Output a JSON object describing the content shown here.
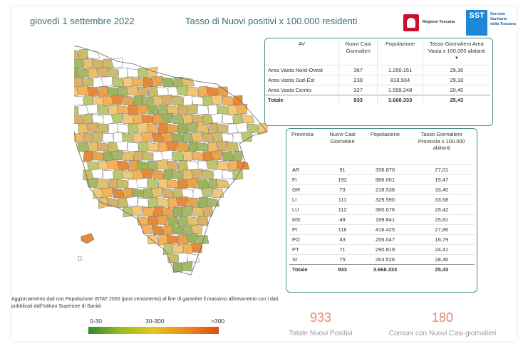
{
  "header": {
    "date": "giovedì 1 settembre 2022",
    "title": "Tasso di Nuovi positivi x 100.000 residenti",
    "logo_regione": "Regione Toscana",
    "logo_sst_mark": "SST",
    "logo_sst_text": "Servizio Sanitario della Toscana"
  },
  "av_table": {
    "headers": [
      "AV",
      "Nuovi Casi Giornalieri",
      "Popolazione",
      "Tasso Giornaliero Area Vasta x 100.000 abitanti"
    ],
    "sort_indicator": "▼",
    "rows": [
      [
        "Area Vasta Nord-Ovest",
        "367",
        "1.250.151",
        "29,36"
      ],
      [
        "Area Vasta Sud-Est",
        "239",
        "818.934",
        "29,18"
      ],
      [
        "Area Vasta Centro",
        "327",
        "1.599.248",
        "20,45"
      ]
    ],
    "total": [
      "Totale",
      "933",
      "3.668.333",
      "25,43"
    ]
  },
  "prov_table": {
    "headers": [
      "Provincia",
      "Nuovi Casi Giornalieri",
      "Popolazione",
      "Tasso Giornaliero Provincia x 100.000 abitanti"
    ],
    "rows": [
      [
        "AR",
        "91",
        "336.870",
        "27,01"
      ],
      [
        "FI",
        "192",
        "986.001",
        "19,47"
      ],
      [
        "GR",
        "73",
        "218.538",
        "33,40"
      ],
      [
        "LI",
        "111",
        "329.590",
        "33,68"
      ],
      [
        "LU",
        "112",
        "380.676",
        "29,42"
      ],
      [
        "MS",
        "49",
        "189.841",
        "25,81"
      ],
      [
        "PI",
        "116",
        "416.425",
        "27,86"
      ],
      [
        "PO",
        "43",
        "256.047",
        "16,79"
      ],
      [
        "PT",
        "71",
        "290.819",
        "24,41"
      ],
      [
        "SI",
        "75",
        "263.526",
        "28,46"
      ]
    ],
    "total": [
      "Totale",
      "933",
      "3.668.333",
      "25,43"
    ]
  },
  "note": "Aggiornamento dati con Popolazione ISTAT 2020 (post censimento) al fine di garantire il massimo allineamento con i dati pubblicati dall'Istituto Superiore di Sanità",
  "legend": {
    "labels": [
      "0-30",
      "30-300",
      ">300"
    ],
    "colors": [
      "#2e8b2e",
      "#e2c520",
      "#e04a10"
    ]
  },
  "kpis": {
    "total_positives": {
      "value": "933",
      "label": "Totale Nuovi Positivi"
    },
    "municipalities": {
      "value": "180",
      "label": "Comuni con Nuovi Casi giornalieri"
    }
  },
  "map_colors": [
    "#f3b25a",
    "#e6c06a",
    "#bcc870",
    "#9bb35a",
    "#ffffff",
    "#e58a3a",
    "#d7b06a",
    "#f1c77a",
    "#a6b86a",
    "#ffffff",
    "#e9a34a",
    "#c9bd6a"
  ]
}
